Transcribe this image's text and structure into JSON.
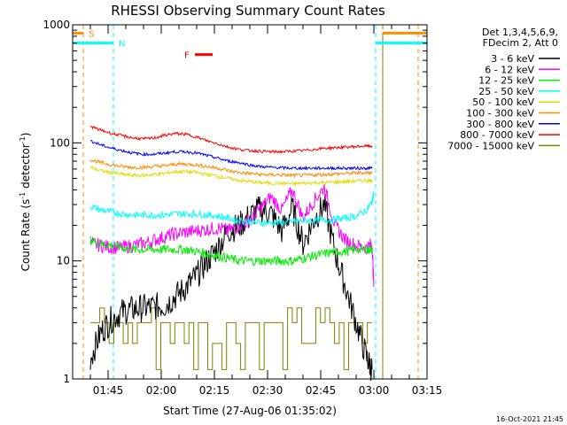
{
  "chart_data": {
    "type": "line",
    "title": "RHESSI Observing Summary Count Rates",
    "xlabel": "Start Time (27-Aug-06 01:35:02)",
    "ylabel_main": "Count Rate (s",
    "ylabel_sup1": "-1",
    "ylabel_mid": " detector",
    "ylabel_sup2": "-1",
    "ylabel_end": ")",
    "y_scale": "log",
    "ylim": [
      1,
      1000
    ],
    "xlim_minutes": [
      0,
      100
    ],
    "x_ticks": [
      {
        "label": "01:45",
        "t": 10
      },
      {
        "label": "02:00",
        "t": 25
      },
      {
        "label": "02:15",
        "t": 40
      },
      {
        "label": "02:30",
        "t": 55
      },
      {
        "label": "02:45",
        "t": 70
      },
      {
        "label": "03:00",
        "t": 85
      },
      {
        "label": "03:15",
        "t": 100
      }
    ],
    "y_ticks": [
      {
        "label": "1",
        "v": 1
      },
      {
        "label": "10",
        "v": 10
      },
      {
        "label": "100",
        "v": 100
      },
      {
        "label": "1000",
        "v": 1000
      }
    ],
    "legend_header": [
      "Det 1,3,4,5,6,9,",
      "FDecim 2, Att 0"
    ],
    "legend_placement": "right",
    "series": [
      {
        "name": "3 - 6 keV",
        "color": "#000000",
        "t": [
          5,
          8,
          11,
          14,
          17,
          20,
          23,
          26,
          29,
          32,
          35,
          38,
          41,
          44,
          47,
          50,
          53,
          56,
          59,
          62,
          65,
          68,
          71,
          74,
          77,
          80,
          83,
          84.5
        ],
        "v": [
          1.5,
          2.5,
          3.2,
          3.7,
          3.9,
          4.0,
          4.1,
          4.2,
          5.0,
          6.0,
          7.5,
          10,
          13,
          18,
          20,
          24,
          28,
          25,
          18,
          28,
          14,
          22,
          30,
          12,
          6,
          3,
          1.5,
          1.2
        ]
      },
      {
        "name": "6 - 12 keV",
        "color": "#ff00ff",
        "t": [
          5,
          8,
          11,
          14,
          17,
          20,
          23,
          26,
          29,
          32,
          35,
          38,
          41,
          44,
          47,
          50,
          53,
          56,
          59,
          62,
          65,
          68,
          71,
          74,
          77,
          80,
          83,
          84.5,
          85
        ],
        "v": [
          14,
          13.5,
          13,
          13,
          13.5,
          14,
          15,
          16,
          17,
          17.5,
          18,
          18.5,
          19,
          18,
          20,
          22,
          28,
          35,
          27,
          40,
          23,
          32,
          42,
          20,
          15,
          13.5,
          13,
          14,
          6
        ]
      },
      {
        "name": "12 - 25 keV",
        "color": "#00ee00",
        "t": [
          5,
          8,
          11,
          14,
          17,
          20,
          23,
          26,
          29,
          32,
          35,
          38,
          41,
          44,
          47,
          50,
          53,
          56,
          59,
          62,
          65,
          68,
          71,
          74,
          77,
          80,
          83,
          84.5
        ],
        "v": [
          15,
          14,
          13.5,
          13,
          12.5,
          12.5,
          12.5,
          12.5,
          12.5,
          12.5,
          12,
          11.5,
          11,
          10.5,
          10,
          10,
          10,
          10,
          10,
          10,
          10.5,
          11,
          11.5,
          12,
          12,
          12.5,
          12.5,
          12.5
        ]
      },
      {
        "name": "25 - 50 keV",
        "color": "#00ffff",
        "t": [
          5,
          8,
          11,
          14,
          17,
          20,
          23,
          26,
          29,
          32,
          35,
          38,
          41,
          44,
          47,
          50,
          53,
          56,
          59,
          62,
          65,
          68,
          71,
          74,
          77,
          80,
          83,
          84.5,
          85
        ],
        "v": [
          29,
          27,
          26,
          25,
          24.5,
          24.5,
          24.5,
          24.5,
          25,
          25,
          25,
          24.5,
          24,
          23,
          22,
          21.5,
          21,
          21,
          21,
          21.5,
          22,
          22,
          22,
          22.5,
          23,
          24,
          27,
          32,
          38
        ]
      },
      {
        "name": "50 - 100 keV",
        "color": "#dddd00",
        "t": [
          5,
          8,
          11,
          14,
          17,
          20,
          23,
          26,
          29,
          32,
          35,
          38,
          41,
          44,
          47,
          50,
          53,
          56,
          59,
          62,
          65,
          68,
          71,
          74,
          77,
          80,
          83,
          84.5
        ],
        "v": [
          62,
          58,
          56,
          54,
          53,
          53,
          54,
          55,
          57,
          57,
          56,
          54,
          52,
          50,
          48,
          47,
          46,
          45.5,
          45.5,
          45,
          45.5,
          46,
          46,
          46.5,
          47,
          47.5,
          48,
          48
        ]
      },
      {
        "name": "100 - 300 keV",
        "color": "#ff8c00",
        "t": [
          5,
          8,
          11,
          14,
          17,
          20,
          23,
          26,
          29,
          32,
          35,
          38,
          41,
          44,
          47,
          50,
          53,
          56,
          59,
          62,
          65,
          68,
          71,
          74,
          77,
          80,
          83,
          84.5
        ],
        "v": [
          72,
          68,
          65,
          63,
          62,
          62,
          63,
          64,
          66,
          66,
          65,
          63,
          61,
          58,
          56,
          55,
          54,
          53.5,
          53.5,
          53,
          53,
          53.5,
          54,
          54.5,
          55,
          55.5,
          56,
          56
        ]
      },
      {
        "name": "300 - 800 keV",
        "color": "#0000ff",
        "t": [
          5,
          8,
          11,
          14,
          17,
          20,
          23,
          26,
          29,
          32,
          35,
          38,
          41,
          44,
          47,
          50,
          53,
          56,
          59,
          62,
          65,
          68,
          71,
          74,
          77,
          80,
          83,
          84.5
        ],
        "v": [
          104,
          96,
          90,
          86,
          82,
          80,
          80,
          82,
          84,
          84,
          82,
          78,
          74,
          70,
          68,
          65,
          63,
          62,
          61.5,
          61,
          61,
          61,
          61,
          61,
          61,
          61,
          61,
          61
        ]
      },
      {
        "name": "800 - 7000 keV",
        "color": "#ff0000",
        "t": [
          5,
          8,
          11,
          14,
          17,
          20,
          23,
          26,
          29,
          32,
          35,
          38,
          41,
          44,
          47,
          50,
          53,
          56,
          59,
          62,
          65,
          68,
          71,
          74,
          77,
          80,
          83,
          84.5
        ],
        "v": [
          138,
          128,
          120,
          115,
          110,
          108,
          110,
          116,
          120,
          118,
          112,
          104,
          98,
          92,
          88,
          86,
          85,
          84,
          84,
          85,
          86,
          88,
          90,
          91,
          92,
          93,
          94,
          94
        ]
      },
      {
        "name": "7000 - 15000 keV",
        "color": "#808000",
        "t": [
          5,
          8,
          11,
          14,
          17,
          20,
          23,
          26,
          29,
          32,
          35,
          38,
          41,
          44,
          47,
          50,
          53,
          56,
          59,
          62,
          65,
          68,
          71,
          74,
          77,
          80,
          83,
          84.5
        ],
        "v": [
          3,
          3,
          2,
          3,
          3.5,
          3,
          2,
          3,
          3,
          2,
          3,
          2,
          3,
          3,
          2,
          3,
          3,
          2,
          3,
          2,
          3,
          3,
          2,
          3,
          2,
          3,
          3,
          3
        ]
      }
    ],
    "flags": [
      {
        "label": "S",
        "color": "#ff8c00",
        "segments": [
          [
            0,
            3
          ]
        ],
        "level": 850,
        "boundaries": [
          3
        ]
      },
      {
        "label": "N",
        "color": "#00ffff",
        "segments": [
          [
            0,
            11.5
          ],
          [
            85.5,
            100
          ]
        ],
        "level": 700,
        "boundaries": [
          11.5,
          85.5
        ]
      },
      {
        "label": "F",
        "color": "#ff0000",
        "segments": [
          [
            34.5,
            39.5
          ]
        ],
        "level": 560,
        "boundaries": []
      }
    ],
    "extra_boundaries": [
      {
        "color": "#ff8c00",
        "t": 97.5
      },
      {
        "color": "#808000",
        "t": 87.5
      }
    ],
    "right_orange_segment": [
      87.5,
      100
    ],
    "footer": "16-Oct-2021 21:45"
  }
}
